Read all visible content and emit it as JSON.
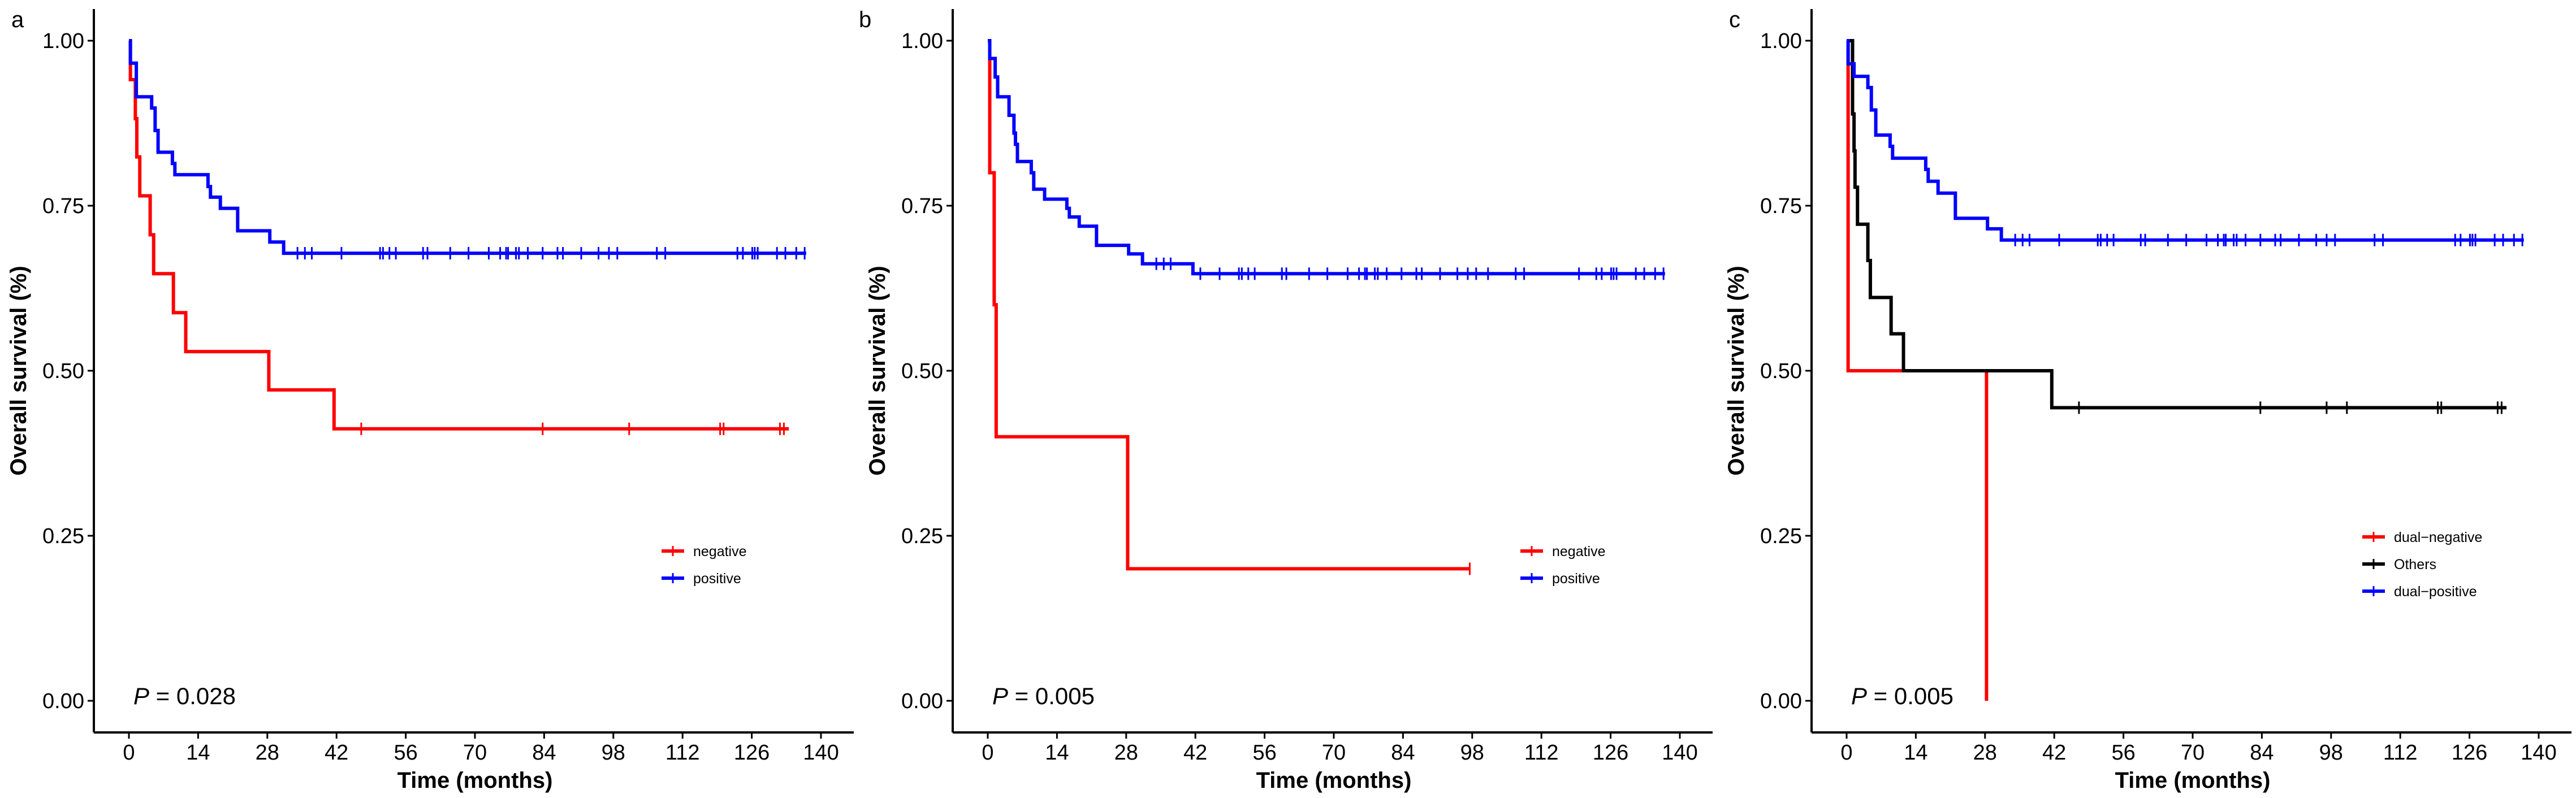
{
  "chart_data": [
    {
      "type": "line",
      "panel_label": "a",
      "xlabel": "Time (months)",
      "ylabel": "Overall survival (%)",
      "xlim": [
        0,
        140
      ],
      "ylim": [
        0,
        1
      ],
      "xticks": [
        "0",
        "14",
        "28",
        "42",
        "56",
        "70",
        "84",
        "98",
        "112",
        "126",
        "140"
      ],
      "yticks": [
        "0.00",
        "0.25",
        "0.50",
        "0.75",
        "1.00"
      ],
      "grid": false,
      "legend_position": "bottom-right",
      "p_label": "P",
      "p_value": " = 0.028",
      "series": [
        {
          "name": "negative",
          "color": "#FF0000",
          "steps": [
            [
              0,
              1
            ],
            [
              0.3,
              0.941
            ],
            [
              1.3,
              0.882
            ],
            [
              1.6,
              0.824
            ],
            [
              2.2,
              0.765
            ],
            [
              4.3,
              0.706
            ],
            [
              5,
              0.647
            ],
            [
              9,
              0.588
            ],
            [
              11.5,
              0.529
            ],
            [
              28.3,
              0.471
            ],
            [
              41.5,
              0.412
            ]
          ],
          "end": 133.5,
          "censor": [
            47,
            83.7,
            101.2,
            119.6,
            120.3,
            131.7,
            132.5
          ]
        },
        {
          "name": "positive",
          "color": "#0000FF",
          "steps": [
            [
              0,
              1
            ],
            [
              0.3,
              0.966
            ],
            [
              1.5,
              0.915
            ],
            [
              4.6,
              0.898
            ],
            [
              5.3,
              0.864
            ],
            [
              5.9,
              0.831
            ],
            [
              8.8,
              0.814
            ],
            [
              9.3,
              0.797
            ],
            [
              16,
              0.779
            ],
            [
              16.5,
              0.763
            ],
            [
              18.5,
              0.746
            ],
            [
              22,
              0.712
            ],
            [
              28.5,
              0.695
            ],
            [
              31.3,
              0.678
            ]
          ],
          "end": 137,
          "censor": [
            34.1,
            35.6,
            37.0,
            43.0,
            50.8,
            51.4,
            52.7,
            54.0,
            59.5,
            60.4,
            65.0,
            68.7,
            72.8,
            75.1,
            76.3,
            76.7,
            78.3,
            78.9,
            80.7,
            83.7,
            86.7,
            87.8,
            91.5,
            95.0,
            97.1,
            98.8,
            106.8,
            108.5,
            123.1,
            124.2,
            126.1,
            126.6,
            127.2,
            131.1,
            132.8,
            135.0,
            136.7
          ]
        }
      ]
    },
    {
      "type": "line",
      "panel_label": "b",
      "xlabel": "Time (months)",
      "ylabel": "Overall survival (%)",
      "xlim": [
        0,
        140
      ],
      "ylim": [
        0,
        1
      ],
      "xticks": [
        "0",
        "14",
        "28",
        "42",
        "56",
        "70",
        "84",
        "98",
        "112",
        "126",
        "140"
      ],
      "yticks": [
        "0.00",
        "0.25",
        "0.50",
        "0.75",
        "1.00"
      ],
      "grid": false,
      "legend_position": "bottom-right",
      "p_label": "P",
      "p_value": " = 0.005",
      "series": [
        {
          "name": "negative",
          "color": "#FF0000",
          "steps": [
            [
              0,
              1
            ],
            [
              0.4,
              0.8
            ],
            [
              1.3,
              0.6
            ],
            [
              1.7,
              0.4
            ],
            [
              28.3,
              0.2
            ]
          ],
          "end": 97.5,
          "censor": [
            97.5
          ]
        },
        {
          "name": "positive",
          "color": "#0000FF",
          "steps": [
            [
              0,
              1
            ],
            [
              0.4,
              0.973
            ],
            [
              1.5,
              0.945
            ],
            [
              2,
              0.915
            ],
            [
              4.3,
              0.887
            ],
            [
              5.3,
              0.86
            ],
            [
              5.6,
              0.843
            ],
            [
              6,
              0.817
            ],
            [
              8.8,
              0.8
            ],
            [
              9.3,
              0.775
            ],
            [
              11.5,
              0.76
            ],
            [
              16,
              0.746
            ],
            [
              16.5,
              0.733
            ],
            [
              18.5,
              0.719
            ],
            [
              22,
              0.69
            ],
            [
              28.5,
              0.677
            ],
            [
              31.3,
              0.662
            ],
            [
              41.5,
              0.647
            ]
          ],
          "end": 137,
          "censor": [
            34.1,
            35.6,
            37.0,
            43.0,
            46.9,
            50.8,
            51.4,
            52.7,
            54.0,
            59.5,
            60.4,
            65.0,
            68.7,
            72.8,
            75.1,
            76.3,
            76.7,
            78.3,
            78.9,
            80.7,
            83.7,
            86.7,
            87.8,
            91.5,
            95.0,
            97.1,
            98.8,
            101.2,
            106.8,
            108.5,
            119.6,
            123.1,
            124.2,
            126.1,
            126.6,
            127.2,
            131.1,
            132.8,
            135.0,
            136.7
          ]
        }
      ]
    },
    {
      "type": "line",
      "panel_label": "c",
      "xlabel": "Time (months)",
      "ylabel": "Overall survival (%)",
      "xlim": [
        0,
        140
      ],
      "ylim": [
        0,
        1
      ],
      "xticks": [
        "0",
        "14",
        "28",
        "42",
        "56",
        "70",
        "84",
        "98",
        "112",
        "126",
        "140"
      ],
      "yticks": [
        "0.00",
        "0.25",
        "0.50",
        "0.75",
        "1.00"
      ],
      "grid": false,
      "legend_position": "bottom-right",
      "p_label": "P",
      "p_value": " = 0.005",
      "series": [
        {
          "name": "dual−negative",
          "color": "#FF0000",
          "steps": [
            [
              0,
              1
            ],
            [
              0.3,
              0.5
            ],
            [
              28.3,
              0
            ]
          ],
          "end": 28.3,
          "censor": []
        },
        {
          "name": "Others",
          "color": "#000000",
          "steps": [
            [
              0,
              1
            ],
            [
              1.2,
              0.889
            ],
            [
              1.5,
              0.833
            ],
            [
              1.7,
              0.778
            ],
            [
              2.2,
              0.722
            ],
            [
              4.3,
              0.667
            ],
            [
              4.8,
              0.611
            ],
            [
              9,
              0.556
            ],
            [
              11.5,
              0.5
            ],
            [
              41.5,
              0.444
            ]
          ],
          "end": 133.5,
          "censor": [
            47,
            83.7,
            97.1,
            101.2,
            119.6,
            120.3,
            131.7,
            132.5
          ]
        },
        {
          "name": "dual−positive",
          "color": "#0000FF",
          "steps": [
            [
              0,
              1
            ],
            [
              0.3,
              0.965
            ],
            [
              1.5,
              0.946
            ],
            [
              4.3,
              0.929
            ],
            [
              5,
              0.895
            ],
            [
              5.9,
              0.857
            ],
            [
              8.8,
              0.84
            ],
            [
              9.3,
              0.822
            ],
            [
              16,
              0.805
            ],
            [
              16.5,
              0.787
            ],
            [
              18.5,
              0.769
            ],
            [
              22,
              0.731
            ],
            [
              28.5,
              0.715
            ],
            [
              31.3,
              0.698
            ]
          ],
          "end": 137,
          "censor": [
            34.1,
            35.6,
            37.0,
            43.0,
            50.8,
            51.4,
            52.7,
            54.0,
            59.5,
            60.4,
            65.0,
            68.7,
            72.8,
            75.1,
            76.3,
            76.7,
            78.3,
            78.9,
            80.7,
            83.7,
            86.7,
            87.8,
            91.5,
            95.0,
            97.1,
            98.8,
            106.8,
            108.5,
            123.1,
            124.2,
            126.1,
            126.6,
            127.2,
            131.1,
            132.8,
            135.0,
            136.7
          ]
        }
      ]
    }
  ]
}
